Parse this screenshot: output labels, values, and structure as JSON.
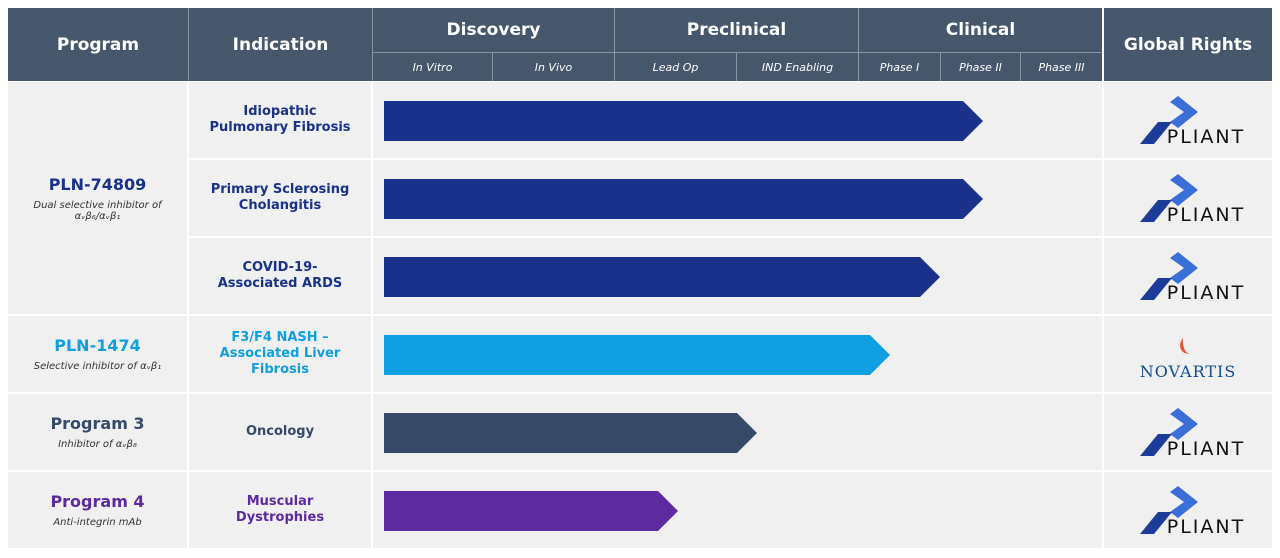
{
  "header": {
    "program": "Program",
    "indication": "Indication",
    "stages": [
      {
        "name": "Discovery",
        "phases": [
          "In Vitro",
          "In Vivo"
        ]
      },
      {
        "name": "Preclinical",
        "phases": [
          "Lead Op",
          "IND Enabling"
        ]
      },
      {
        "name": "Clinical",
        "phases": [
          "Phase I",
          "Phase II",
          "Phase III"
        ]
      }
    ],
    "rights": "Global Rights"
  },
  "programs": [
    {
      "name": "PLN-74809",
      "description": "Dual selective inhibitor of αᵥβ₆/αᵥβ₁",
      "indications": [
        "Idiopathic Pulmonary Fibrosis",
        "Primary Sclerosing Cholangitis",
        "COVID-19-Associated ARDS"
      ],
      "rights": [
        "PLIANT",
        "PLIANT",
        "PLIANT"
      ]
    },
    {
      "name": "PLN-1474",
      "description": "Selective inhibitor of αᵥβ₁",
      "indications": [
        "F3/F4 NASH – Associated Liver Fibrosis"
      ],
      "rights": [
        "NOVARTIS"
      ]
    },
    {
      "name": "Program 3",
      "description": "Inhibitor of αᵥβ₈",
      "indications": [
        "Oncology"
      ],
      "rights": [
        "PLIANT"
      ]
    },
    {
      "name": "Program 4",
      "description": "Anti-integrin mAb",
      "indications": [
        "Muscular Dystrophies"
      ],
      "rights": [
        "PLIANT"
      ]
    }
  ]
}
